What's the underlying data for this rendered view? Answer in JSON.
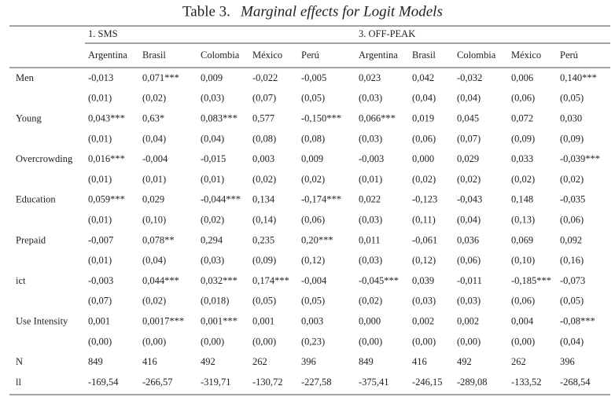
{
  "title": {
    "number": "Table 3.",
    "text": "Marginal effects for Logit Models"
  },
  "table": {
    "groups": [
      "1. SMS",
      "3. OFF-PEAK"
    ],
    "columns": [
      "Argentina",
      "Brasil",
      "Colombia",
      "México",
      "Perú",
      "Argentina",
      "Brasil",
      "Colombia",
      "México",
      "Perú"
    ],
    "rows": [
      {
        "label": "Men",
        "coef": [
          "-0,013",
          "0,071***",
          "0,009",
          "-0,022",
          "-0,005",
          "0,023",
          "0,042",
          "-0,032",
          "0,006",
          "0,140***"
        ],
        "se": [
          "(0,01)",
          "(0,02)",
          "(0,03)",
          "(0,07)",
          "(0,05)",
          "(0,03)",
          "(0,04)",
          "(0,04)",
          "(0,06)",
          "(0,05)"
        ]
      },
      {
        "label": "Young",
        "coef": [
          "0,043***",
          "0,63*",
          "0,083***",
          "0,577",
          "-0,150***",
          "0,066***",
          "0,019",
          "0,045",
          "0,072",
          "0,030"
        ],
        "se": [
          "(0,01)",
          "(0,04)",
          "(0,04)",
          "(0,08)",
          "(0,08)",
          "(0,03)",
          "(0,06)",
          "(0,07)",
          "(0,09)",
          "(0,09)"
        ]
      },
      {
        "label": "Overcrowding",
        "coef": [
          "0,016***",
          "-0,004",
          "-0,015",
          "0,003",
          "0,009",
          "-0,003",
          "0,000",
          "0,029",
          "0,033",
          "-0,039***"
        ],
        "se": [
          "(0,01)",
          "(0,01)",
          "(0,01)",
          "(0,02)",
          "(0,02)",
          "(0,01)",
          "(0,02)",
          "(0,02)",
          "(0,02)",
          "(0,02)"
        ]
      },
      {
        "label": "Education",
        "coef": [
          "0,059***",
          "0,029",
          "-0,044***",
          "0,134",
          "-0,174***",
          "0,022",
          "-0,123",
          "-0,043",
          "0,148",
          "-0,035"
        ],
        "se": [
          "(0,01)",
          "(0,10)",
          "(0,02)",
          "(0,14)",
          "(0,06)",
          "(0,03)",
          "(0,11)",
          "(0,04)",
          "(0,13)",
          "(0,06)"
        ]
      },
      {
        "label": "Prepaid",
        "coef": [
          "-0,007",
          "0,078**",
          "0,294",
          "0,235",
          "0,20***",
          "0,011",
          "-0,061",
          "0,036",
          "0,069",
          "0,092"
        ],
        "se": [
          "(0,01)",
          "(0,04)",
          "(0,03)",
          "(0,09)",
          "(0,12)",
          "(0,03)",
          "(0,12)",
          "(0,06)",
          "(0,10)",
          "(0,16)"
        ]
      },
      {
        "label": "ict",
        "coef": [
          "-0,003",
          "0,044***",
          "0,032***",
          "0,174***",
          "-0,004",
          "-0,045***",
          "0,039",
          "-0,011",
          "-0,185***",
          "-0,073"
        ],
        "se": [
          "(0,07)",
          "(0,02)",
          "(0,018)",
          "(0,05)",
          "(0,05)",
          "(0,02)",
          "(0,03)",
          "(0,03)",
          "(0,06)",
          "(0,05)"
        ]
      },
      {
        "label": "Use Intensity",
        "coef": [
          "0,001",
          "0,0017***",
          "0,001***",
          "0,001",
          "0,003",
          "0,000",
          "0,002",
          "0,002",
          "0,004",
          "-0,08***"
        ],
        "se": [
          "(0,00)",
          "(0,00)",
          "(0,00)",
          "(0,00)",
          "(0,23)",
          "(0,00)",
          "(0,00)",
          "(0,00)",
          "(0,00)",
          "(0,04)"
        ]
      }
    ],
    "stats": [
      {
        "label": "N",
        "values": [
          "849",
          "416",
          "492",
          "262",
          "396",
          "849",
          "416",
          "492",
          "262",
          "396"
        ]
      },
      {
        "label": "ll",
        "values": [
          "-169,54",
          "-266,57",
          "-319,71",
          "-130,72",
          "-227,58",
          "-375,41",
          "-246,15",
          "-289,08",
          "-133,52",
          "-268,54"
        ]
      }
    ]
  }
}
